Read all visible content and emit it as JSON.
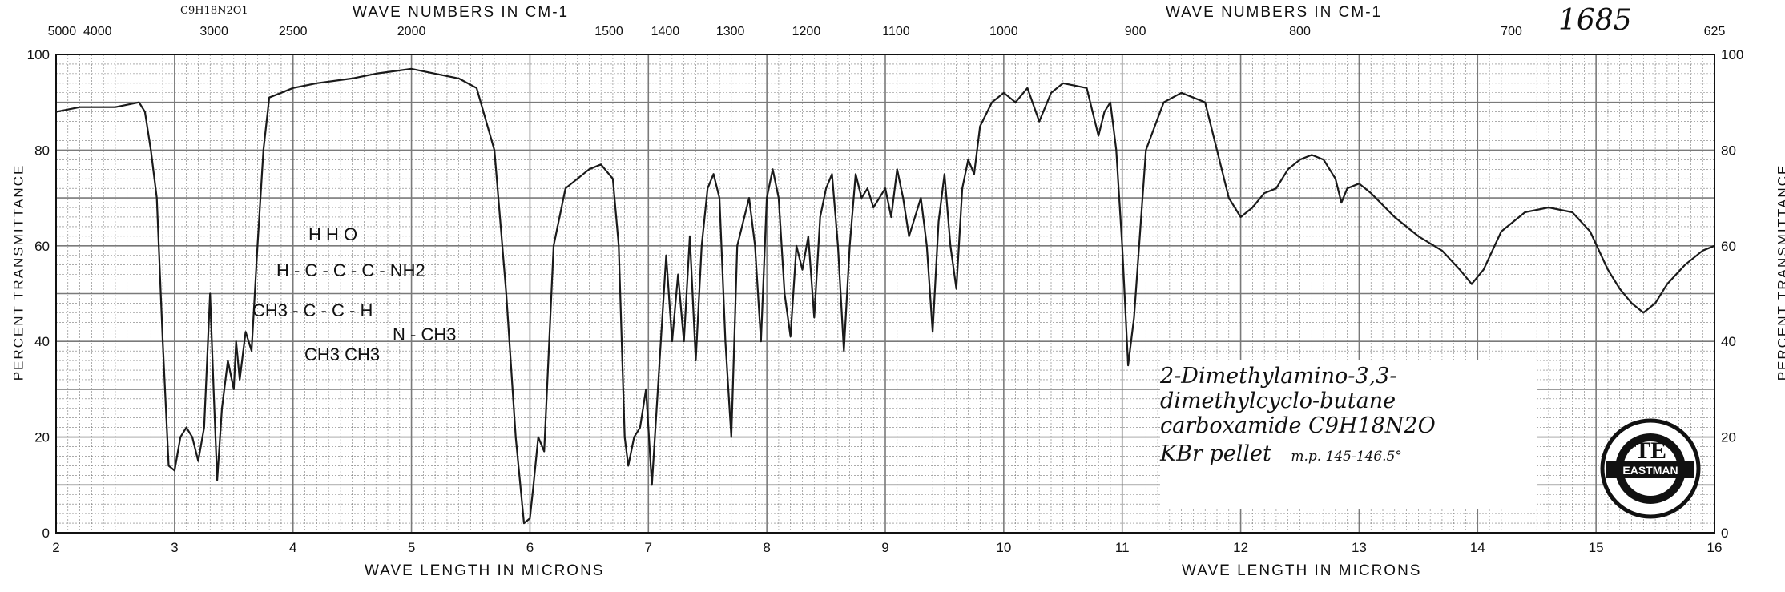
{
  "header": {
    "top_left_label": "WAVE NUMBERS IN CM-1",
    "top_right_label": "WAVE NUMBERS IN CM-1",
    "formula_small": "C9H18N2O1",
    "sample_number": "1685",
    "bottom_left_label": "WAVE LENGTH IN MICRONS",
    "bottom_right_label": "WAVE LENGTH IN MICRONS",
    "left_axis_label": "PERCENT TRANSMITTANCE",
    "right_axis_label": "PERCENT TRANSMITTANCE"
  },
  "structure": {
    "row1": "H   H   O",
    "row2": "H - C - C - C - NH2",
    "row3": "CH3 - C - C - H",
    "row3b": "N - CH3",
    "row4": "CH3        CH3"
  },
  "note": {
    "line1": "2-Dimethylamino-3,3-",
    "line2": "dimethylcyclo-butane",
    "line3": "carboxamide C9H18N2O",
    "line4": "KBr pellet",
    "mp": "m.p. 145-146.5°"
  },
  "seal": {
    "label": "EASTMAN"
  },
  "chart_data": {
    "type": "line",
    "title": "",
    "xlabel": "WAVE LENGTH IN MICRONS",
    "ylabel": "PERCENT TRANSMITTANCE",
    "xlim": [
      2,
      16
    ],
    "ylim": [
      0,
      100
    ],
    "x_ticks": [
      "2",
      "3",
      "4",
      "5",
      "6",
      "7",
      "8",
      "9",
      "10",
      "11",
      "12",
      "13",
      "14",
      "15",
      "16"
    ],
    "y_ticks": [
      "0",
      "20",
      "40",
      "60",
      "80",
      "100"
    ],
    "top_ticks": [
      {
        "label": "5000",
        "wn": 5000
      },
      {
        "label": "4000",
        "wn": 4000
      },
      {
        "label": "3000",
        "wn": 3000
      },
      {
        "label": "2500",
        "wn": 2500
      },
      {
        "label": "2000",
        "wn": 2000
      },
      {
        "label": "1500",
        "wn": 1500
      },
      {
        "label": "1400",
        "wn": 1400
      },
      {
        "label": "1300",
        "wn": 1300
      },
      {
        "label": "1200",
        "wn": 1200
      },
      {
        "label": "1100",
        "wn": 1100
      },
      {
        "label": "1000",
        "wn": 1000
      },
      {
        "label": "900",
        "wn": 900
      },
      {
        "label": "800",
        "wn": 800
      },
      {
        "label": "700",
        "wn": 700
      },
      {
        "label": "625",
        "wn": 625
      }
    ],
    "series": [
      {
        "points": [
          [
            2.0,
            88
          ],
          [
            2.2,
            89
          ],
          [
            2.5,
            89
          ],
          [
            2.7,
            90
          ],
          [
            2.75,
            88
          ],
          [
            2.8,
            80
          ],
          [
            2.85,
            70
          ],
          [
            2.9,
            40
          ],
          [
            2.95,
            14
          ],
          [
            3.0,
            13
          ],
          [
            3.05,
            20
          ],
          [
            3.1,
            22
          ],
          [
            3.15,
            20
          ],
          [
            3.2,
            15
          ],
          [
            3.25,
            22
          ],
          [
            3.3,
            50
          ],
          [
            3.33,
            30
          ],
          [
            3.36,
            11
          ],
          [
            3.4,
            26
          ],
          [
            3.45,
            36
          ],
          [
            3.5,
            30
          ],
          [
            3.52,
            40
          ],
          [
            3.55,
            32
          ],
          [
            3.6,
            42
          ],
          [
            3.65,
            38
          ],
          [
            3.7,
            60
          ],
          [
            3.75,
            80
          ],
          [
            3.8,
            91
          ],
          [
            3.9,
            92
          ],
          [
            4.0,
            93
          ],
          [
            4.2,
            94
          ],
          [
            4.5,
            95
          ],
          [
            4.7,
            96
          ],
          [
            5.0,
            97
          ],
          [
            5.2,
            96
          ],
          [
            5.4,
            95
          ],
          [
            5.55,
            93
          ],
          [
            5.7,
            80
          ],
          [
            5.8,
            50
          ],
          [
            5.88,
            20
          ],
          [
            5.95,
            2
          ],
          [
            6.0,
            3
          ],
          [
            6.03,
            10
          ],
          [
            6.07,
            20
          ],
          [
            6.12,
            17
          ],
          [
            6.2,
            60
          ],
          [
            6.3,
            72
          ],
          [
            6.5,
            76
          ],
          [
            6.6,
            77
          ],
          [
            6.7,
            74
          ],
          [
            6.75,
            60
          ],
          [
            6.8,
            20
          ],
          [
            6.83,
            14
          ],
          [
            6.88,
            20
          ],
          [
            6.93,
            22
          ],
          [
            6.98,
            30
          ],
          [
            7.03,
            10
          ],
          [
            7.08,
            30
          ],
          [
            7.15,
            58
          ],
          [
            7.2,
            40
          ],
          [
            7.25,
            54
          ],
          [
            7.3,
            40
          ],
          [
            7.35,
            62
          ],
          [
            7.4,
            36
          ],
          [
            7.45,
            60
          ],
          [
            7.5,
            72
          ],
          [
            7.55,
            75
          ],
          [
            7.6,
            70
          ],
          [
            7.65,
            40
          ],
          [
            7.7,
            20
          ],
          [
            7.75,
            60
          ],
          [
            7.8,
            65
          ],
          [
            7.85,
            70
          ],
          [
            7.9,
            60
          ],
          [
            7.95,
            40
          ],
          [
            8.0,
            70
          ],
          [
            8.05,
            76
          ],
          [
            8.1,
            70
          ],
          [
            8.15,
            50
          ],
          [
            8.2,
            41
          ],
          [
            8.25,
            60
          ],
          [
            8.3,
            55
          ],
          [
            8.35,
            62
          ],
          [
            8.4,
            45
          ],
          [
            8.45,
            66
          ],
          [
            8.5,
            72
          ],
          [
            8.55,
            75
          ],
          [
            8.6,
            60
          ],
          [
            8.65,
            38
          ],
          [
            8.7,
            60
          ],
          [
            8.75,
            75
          ],
          [
            8.8,
            70
          ],
          [
            8.85,
            72
          ],
          [
            8.9,
            68
          ],
          [
            8.95,
            70
          ],
          [
            9.0,
            72
          ],
          [
            9.05,
            66
          ],
          [
            9.1,
            76
          ],
          [
            9.15,
            70
          ],
          [
            9.2,
            62
          ],
          [
            9.3,
            70
          ],
          [
            9.35,
            60
          ],
          [
            9.4,
            42
          ],
          [
            9.45,
            65
          ],
          [
            9.5,
            75
          ],
          [
            9.55,
            60
          ],
          [
            9.6,
            51
          ],
          [
            9.65,
            72
          ],
          [
            9.7,
            78
          ],
          [
            9.75,
            75
          ],
          [
            9.8,
            85
          ],
          [
            9.9,
            90
          ],
          [
            10.0,
            92
          ],
          [
            10.1,
            90
          ],
          [
            10.2,
            93
          ],
          [
            10.3,
            86
          ],
          [
            10.4,
            92
          ],
          [
            10.5,
            94
          ],
          [
            10.7,
            93
          ],
          [
            10.8,
            83
          ],
          [
            10.85,
            88
          ],
          [
            10.9,
            90
          ],
          [
            10.95,
            80
          ],
          [
            11.0,
            60
          ],
          [
            11.05,
            35
          ],
          [
            11.1,
            45
          ],
          [
            11.2,
            80
          ],
          [
            11.35,
            90
          ],
          [
            11.5,
            92
          ],
          [
            11.7,
            90
          ],
          [
            11.8,
            80
          ],
          [
            11.9,
            70
          ],
          [
            12.0,
            66
          ],
          [
            12.1,
            68
          ],
          [
            12.2,
            71
          ],
          [
            12.3,
            72
          ],
          [
            12.4,
            76
          ],
          [
            12.5,
            78
          ],
          [
            12.6,
            79
          ],
          [
            12.7,
            78
          ],
          [
            12.8,
            74
          ],
          [
            12.85,
            69
          ],
          [
            12.9,
            72
          ],
          [
            13.0,
            73
          ],
          [
            13.1,
            71
          ],
          [
            13.3,
            66
          ],
          [
            13.5,
            62
          ],
          [
            13.7,
            59
          ],
          [
            13.85,
            55
          ],
          [
            13.95,
            52
          ],
          [
            14.05,
            55
          ],
          [
            14.2,
            63
          ],
          [
            14.4,
            67
          ],
          [
            14.6,
            68
          ],
          [
            14.8,
            67
          ],
          [
            14.95,
            63
          ],
          [
            15.1,
            55
          ],
          [
            15.2,
            51
          ],
          [
            15.3,
            48
          ],
          [
            15.4,
            46
          ],
          [
            15.5,
            48
          ],
          [
            15.6,
            52
          ],
          [
            15.75,
            56
          ],
          [
            15.9,
            59
          ],
          [
            16.0,
            60
          ]
        ]
      }
    ],
    "grid": true,
    "line_color": "#1a1a1a",
    "grid_color": "#7a7a7a",
    "annotations": [
      "1685"
    ]
  }
}
